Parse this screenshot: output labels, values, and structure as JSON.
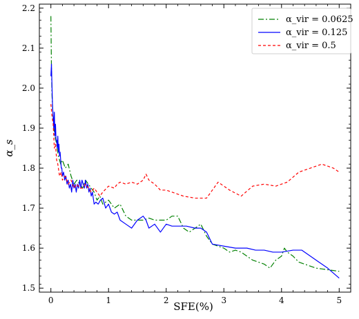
{
  "chart_data": {
    "type": "line",
    "xlabel": "SFE(%)",
    "ylabel": "α_s",
    "xlim": [
      -0.2,
      5.2
    ],
    "ylim": [
      1.49,
      2.21
    ],
    "xticks": [
      0,
      1,
      2,
      3,
      4,
      5
    ],
    "yticks": [
      1.5,
      1.6,
      1.7,
      1.8,
      1.9,
      2.0,
      2.1,
      2.2
    ],
    "grid": false,
    "legend_placement": "top-right",
    "series": [
      {
        "name": "α_vir = 0.0625",
        "color": "#008000",
        "dash": "dashdot",
        "x": [
          0.0,
          0.01,
          0.02,
          0.03,
          0.05,
          0.07,
          0.1,
          0.13,
          0.17,
          0.2,
          0.25,
          0.3,
          0.35,
          0.4,
          0.45,
          0.5,
          0.55,
          0.6,
          0.65,
          0.7,
          0.75,
          0.8,
          0.85,
          0.9,
          1.0,
          1.1,
          1.2,
          1.3,
          1.4,
          1.5,
          1.6,
          1.7,
          1.8,
          1.9,
          2.0,
          2.1,
          2.2,
          2.3,
          2.4,
          2.5,
          2.6,
          2.7,
          2.8,
          2.9,
          3.0,
          3.1,
          3.2,
          3.3,
          3.4,
          3.5,
          3.6,
          3.7,
          3.8,
          3.9,
          4.0,
          4.05,
          4.1,
          4.2,
          4.3,
          4.4,
          4.5,
          4.6,
          4.7,
          4.8,
          4.9,
          5.0
        ],
        "y": [
          2.18,
          2.05,
          1.98,
          1.95,
          1.9,
          1.88,
          1.86,
          1.83,
          1.81,
          1.82,
          1.8,
          1.81,
          1.78,
          1.76,
          1.77,
          1.76,
          1.75,
          1.77,
          1.76,
          1.75,
          1.74,
          1.72,
          1.73,
          1.71,
          1.72,
          1.7,
          1.71,
          1.68,
          1.67,
          1.67,
          1.67,
          1.675,
          1.67,
          1.67,
          1.67,
          1.68,
          1.68,
          1.65,
          1.64,
          1.65,
          1.66,
          1.63,
          1.61,
          1.605,
          1.6,
          1.59,
          1.595,
          1.59,
          1.58,
          1.57,
          1.565,
          1.56,
          1.55,
          1.57,
          1.58,
          1.6,
          1.59,
          1.58,
          1.565,
          1.56,
          1.555,
          1.55,
          1.548,
          1.546,
          1.544,
          1.542
        ]
      },
      {
        "name": "α_vir = 0.125",
        "color": "#0000ff",
        "dash": "solid",
        "x": [
          0.0,
          0.01,
          0.02,
          0.03,
          0.04,
          0.05,
          0.06,
          0.07,
          0.08,
          0.09,
          0.1,
          0.11,
          0.12,
          0.13,
          0.14,
          0.15,
          0.16,
          0.17,
          0.18,
          0.19,
          0.2,
          0.22,
          0.24,
          0.26,
          0.28,
          0.3,
          0.32,
          0.34,
          0.36,
          0.38,
          0.4,
          0.42,
          0.44,
          0.46,
          0.48,
          0.5,
          0.52,
          0.54,
          0.56,
          0.58,
          0.6,
          0.62,
          0.64,
          0.66,
          0.68,
          0.7,
          0.72,
          0.75,
          0.78,
          0.82,
          0.86,
          0.9,
          0.95,
          1.0,
          1.05,
          1.1,
          1.15,
          1.2,
          1.3,
          1.4,
          1.5,
          1.55,
          1.6,
          1.65,
          1.7,
          1.8,
          1.9,
          2.0,
          2.1,
          2.2,
          2.35,
          2.5,
          2.6,
          2.7,
          2.8,
          3.0,
          3.2,
          3.4,
          3.55,
          3.7,
          3.85,
          4.0,
          4.2,
          4.35,
          4.5,
          4.65,
          4.8,
          5.0
        ],
        "y": [
          2.03,
          2.06,
          2.0,
          1.95,
          1.93,
          1.9,
          1.94,
          1.88,
          1.91,
          1.87,
          1.87,
          1.85,
          1.88,
          1.84,
          1.86,
          1.83,
          1.84,
          1.82,
          1.8,
          1.8,
          1.78,
          1.79,
          1.77,
          1.78,
          1.76,
          1.77,
          1.75,
          1.76,
          1.74,
          1.77,
          1.75,
          1.76,
          1.74,
          1.76,
          1.75,
          1.77,
          1.75,
          1.77,
          1.76,
          1.75,
          1.77,
          1.75,
          1.76,
          1.74,
          1.75,
          1.73,
          1.74,
          1.71,
          1.715,
          1.71,
          1.72,
          1.725,
          1.7,
          1.71,
          1.69,
          1.685,
          1.69,
          1.67,
          1.66,
          1.65,
          1.67,
          1.675,
          1.68,
          1.67,
          1.65,
          1.66,
          1.64,
          1.66,
          1.655,
          1.655,
          1.655,
          1.65,
          1.65,
          1.64,
          1.61,
          1.605,
          1.6,
          1.6,
          1.595,
          1.595,
          1.59,
          1.59,
          1.595,
          1.595,
          1.58,
          1.565,
          1.55,
          1.525
        ]
      },
      {
        "name": "α_vir = 0.5",
        "color": "#ff0000",
        "dash": "dashed",
        "x": [
          0.0,
          0.02,
          0.04,
          0.06,
          0.08,
          0.1,
          0.12,
          0.15,
          0.18,
          0.2,
          0.25,
          0.3,
          0.35,
          0.4,
          0.45,
          0.5,
          0.55,
          0.6,
          0.65,
          0.7,
          0.75,
          0.8,
          0.85,
          0.9,
          1.0,
          1.1,
          1.15,
          1.2,
          1.3,
          1.4,
          1.5,
          1.6,
          1.65,
          1.7,
          1.8,
          1.9,
          2.0,
          2.1,
          2.2,
          2.3,
          2.5,
          2.7,
          2.9,
          3.1,
          3.3,
          3.5,
          3.7,
          3.9,
          4.1,
          4.3,
          4.5,
          4.7,
          4.9,
          5.0
        ],
        "y": [
          1.96,
          1.93,
          1.91,
          1.85,
          1.86,
          1.82,
          1.81,
          1.78,
          1.79,
          1.77,
          1.78,
          1.76,
          1.77,
          1.75,
          1.76,
          1.75,
          1.75,
          1.76,
          1.75,
          1.74,
          1.75,
          1.74,
          1.73,
          1.74,
          1.755,
          1.75,
          1.76,
          1.765,
          1.76,
          1.765,
          1.76,
          1.77,
          1.785,
          1.77,
          1.76,
          1.745,
          1.745,
          1.74,
          1.735,
          1.73,
          1.725,
          1.725,
          1.765,
          1.745,
          1.73,
          1.755,
          1.76,
          1.755,
          1.765,
          1.79,
          1.8,
          1.81,
          1.8,
          1.79
        ]
      }
    ]
  }
}
